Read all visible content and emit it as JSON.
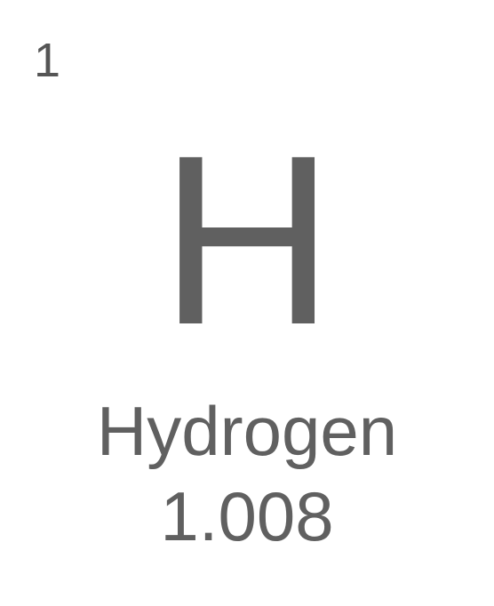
{
  "element": {
    "atomic_number": "1",
    "symbol": "H",
    "name": "Hydrogen",
    "atomic_mass": "1.008"
  },
  "colors": {
    "background": "#ffffff",
    "text": "#606060"
  }
}
